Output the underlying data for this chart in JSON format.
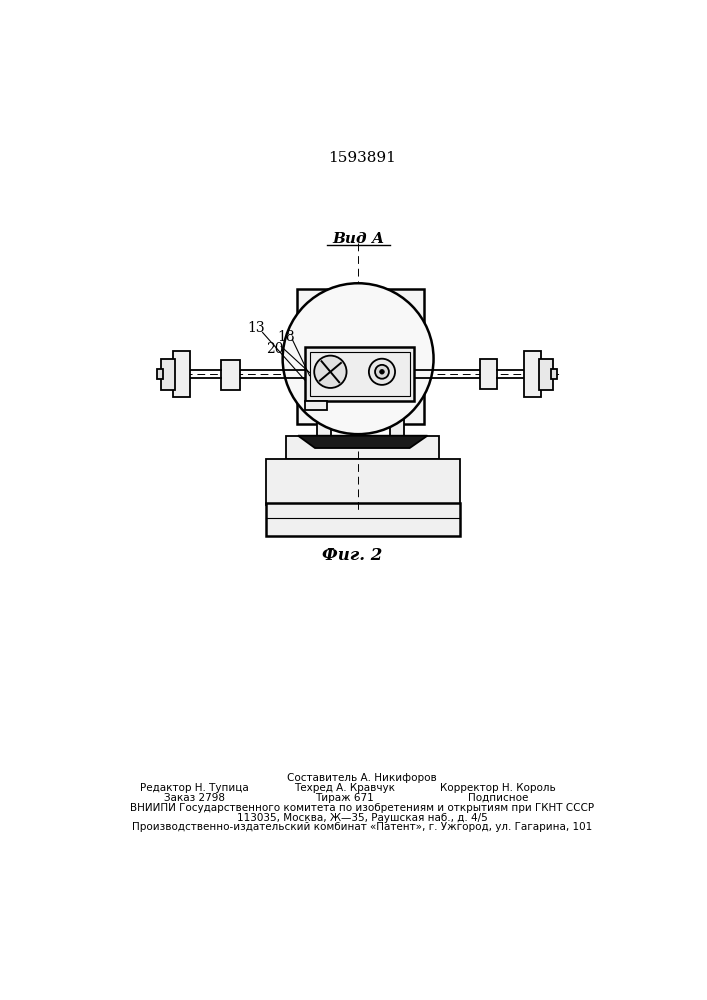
{
  "patent_number": "1593891",
  "view_label": "Вид А",
  "fig_label": "Фиг. 2",
  "bg_color": "#ffffff",
  "line_color": "#000000",
  "footer_lines": [
    "Составитель А. Никифоров",
    "Редактор Н. Тупица",
    "Заказ 2798",
    "Техред А. Кравчук",
    "Тираж 671",
    "Корректор Н. Король",
    "Подписное",
    "ВНИИПИ Государственного комитета по изобретениям и открытиям при ГКНТ СССР",
    "113035, Москва, Ж—35, Раушская наб., д. 4/5",
    "Производственно-издательский комбинат «Патент», г. Ужгород, ул. Гагарина, 101"
  ]
}
